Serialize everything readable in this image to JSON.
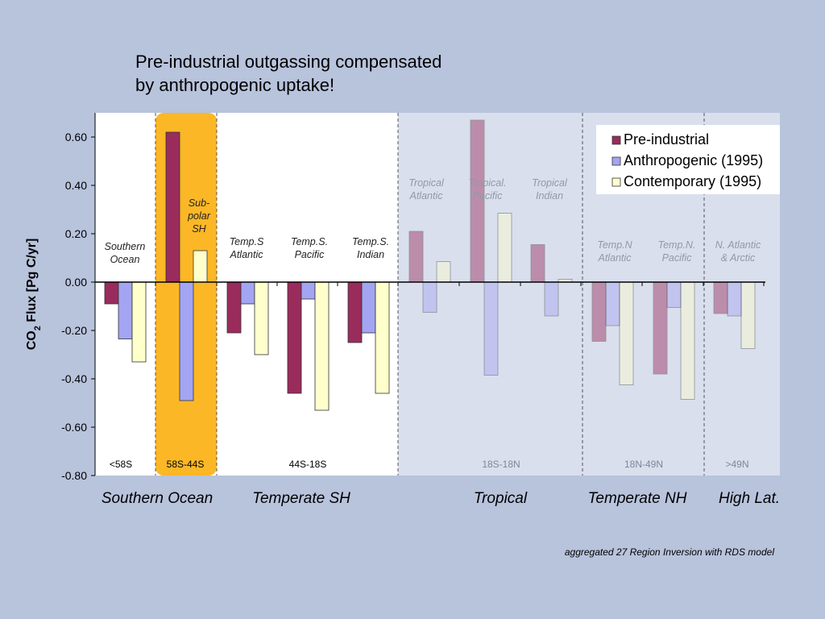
{
  "title_lines": [
    "Pre-industrial outgassing compensated",
    "by anthropogenic uptake!"
  ],
  "footnote": "aggregated 27 Region Inversion with RDS model",
  "colors": {
    "background": "#b8c3dc",
    "plot_area": "#ffffff",
    "tropical_shade": "#d9dfed",
    "subpolar_highlight": "#fbb726",
    "pre_industrial": "#9a2c5c",
    "anthropogenic": "#a3a5f2",
    "contemporary": "#ffffcc"
  },
  "chart_data": {
    "type": "bar",
    "ylabel_main": "CO",
    "ylabel_sub": "2",
    "ylabel_rest": " Flux [Pg C/yr]",
    "ylim": [
      -0.8,
      0.7
    ],
    "yticks": [
      "0.60",
      "0.40",
      "0.20",
      "0.00",
      "-0.20",
      "-0.40",
      "-0.60",
      "-0.80"
    ],
    "ytick_values": [
      0.6,
      0.4,
      0.2,
      0.0,
      -0.2,
      -0.4,
      -0.6,
      -0.8
    ],
    "legend_position": "top-right",
    "series": [
      {
        "name": "Pre-industrial",
        "values": [
          -0.09,
          0.62,
          -0.21,
          -0.46,
          -0.25,
          0.21,
          0.67,
          0.155,
          -0.245,
          -0.38,
          -0.13
        ]
      },
      {
        "name": "Anthropogenic (1995)",
        "values": [
          -0.235,
          -0.49,
          -0.09,
          -0.07,
          -0.21,
          -0.125,
          -0.385,
          -0.14,
          -0.18,
          -0.105,
          -0.14
        ]
      },
      {
        "name": "Contemporary (1995)",
        "values": [
          -0.33,
          0.13,
          -0.3,
          -0.53,
          -0.46,
          0.085,
          0.285,
          0.012,
          -0.425,
          -0.485,
          -0.275
        ]
      }
    ],
    "regions": [
      {
        "label": "Southern Ocean",
        "faded": false
      },
      {
        "label": "Sub-polar SH",
        "faded": false
      },
      {
        "label": "Temp.S Atlantic",
        "faded": false
      },
      {
        "label": "Temp.S. Pacific",
        "faded": false
      },
      {
        "label": "Temp.S. Indian",
        "faded": false
      },
      {
        "label": "Tropical Atlantic",
        "faded": true
      },
      {
        "label": "Tropical. Pacific",
        "faded": true
      },
      {
        "label": "Tropical Indian",
        "faded": true
      },
      {
        "label": "Temp.N Atlantic",
        "faded": true
      },
      {
        "label": "Temp.N. Pacific",
        "faded": true
      },
      {
        "label": "N. Atlantic & Arctic",
        "faded": true
      }
    ],
    "region_label_lines": [
      [
        "Southern",
        "Ocean"
      ],
      [
        "Sub-",
        "polar",
        "SH"
      ],
      [
        "Temp.S",
        "Atlantic"
      ],
      [
        "Temp.S.",
        "Pacific"
      ],
      [
        "Temp.S.",
        "Indian"
      ],
      [
        "Tropical",
        "Atlantic"
      ],
      [
        "Tropical.",
        "Pacific"
      ],
      [
        "Tropical",
        "Indian"
      ],
      [
        "Temp.N",
        "Atlantic"
      ],
      [
        "Temp.N.",
        "Pacific"
      ],
      [
        "N. Atlantic",
        "& Arctic"
      ]
    ],
    "latitude_bands": [
      "<58S",
      "58S-44S",
      "44S-18S",
      "18S-18N",
      "18N-49N",
      ">49N"
    ],
    "zones": [
      "Southern Ocean",
      "Temperate SH",
      "Tropical",
      "Temperate NH",
      "High Lat."
    ]
  }
}
